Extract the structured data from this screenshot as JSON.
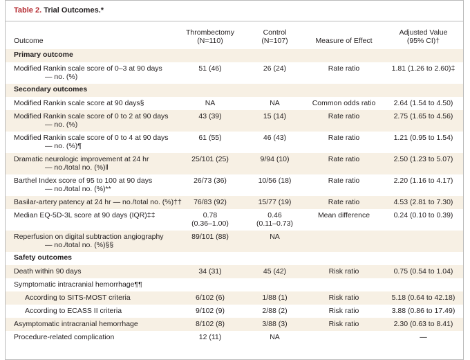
{
  "title": {
    "label": "Table 2.",
    "text": "Trial Outcomes.*"
  },
  "table": {
    "columns": [
      [
        "Outcome"
      ],
      [
        "Thrombectomy",
        "(N=110)"
      ],
      [
        "Control",
        "(N=107)"
      ],
      [
        "Measure of Effect"
      ],
      [
        "Adjusted Value",
        "(95% CI)†"
      ]
    ],
    "rows": [
      {
        "section": "Primary outcome"
      },
      {
        "cells": [
          [
            "Modified Rankin scale score of 0–3 at 90 days",
            "— no. (%)"
          ],
          "51 (46)",
          "26 (24)",
          "Rate ratio",
          "1.81 (1.26 to 2.60)‡"
        ]
      },
      {
        "section": "Secondary outcomes"
      },
      {
        "cells": [
          [
            "Modified Rankin scale score at 90 days§"
          ],
          "NA",
          "NA",
          "Common odds ratio",
          "2.64 (1.54 to 4.50)"
        ]
      },
      {
        "cells": [
          [
            "Modified Rankin scale score of 0 to 2 at 90 days",
            "— no. (%)"
          ],
          "43 (39)",
          "15 (14)",
          "Rate ratio",
          "2.75 (1.65 to 4.56)"
        ]
      },
      {
        "cells": [
          [
            "Modified Rankin scale score of 0 to 4 at 90 days",
            "— no. (%)¶"
          ],
          "61 (55)",
          "46 (43)",
          "Rate ratio",
          "1.21 (0.95 to 1.54)"
        ]
      },
      {
        "cells": [
          [
            "Dramatic neurologic improvement at 24 hr",
            "— no./total no. (%)‖"
          ],
          "25/101 (25)",
          "9/94 (10)",
          "Rate ratio",
          "2.50 (1.23 to 5.07)"
        ]
      },
      {
        "cells": [
          [
            "Barthel Index score of 95 to 100 at 90 days",
            "— no./total no. (%)**"
          ],
          "26/73 (36)",
          "10/56 (18)",
          "Rate ratio",
          "2.20 (1.16 to 4.17)"
        ]
      },
      {
        "cells": [
          [
            "Basilar-artery patency at 24 hr — no./total no. (%)††"
          ],
          "76/83 (92)",
          "15/77 (19)",
          "Rate ratio",
          "4.53 (2.81 to 7.30)"
        ]
      },
      {
        "cells": [
          [
            "Median EQ-5D-3L score at 90 days (IQR)‡‡"
          ],
          [
            "0.78",
            "(0.36–1.00)"
          ],
          [
            "0.46",
            "(0.11–0.73)"
          ],
          "Mean difference",
          "0.24 (0.10 to 0.39)"
        ]
      },
      {
        "cells": [
          [
            "Reperfusion on digital subtraction angiography",
            "— no./total no. (%)§§"
          ],
          "89/101 (88)",
          "NA",
          "",
          ""
        ]
      },
      {
        "section": "Safety outcomes"
      },
      {
        "cells": [
          [
            "Death within 90 days"
          ],
          "34 (31)",
          "45 (42)",
          "Risk ratio",
          "0.75 (0.54 to 1.04)"
        ]
      },
      {
        "cells": [
          [
            "Symptomatic intracranial hemorrhage¶¶"
          ],
          "",
          "",
          "",
          ""
        ]
      },
      {
        "indent": true,
        "cells": [
          [
            "According to SITS-MOST criteria"
          ],
          "6/102 (6)",
          "1/88 (1)",
          "Risk ratio",
          "5.18 (0.64 to 42.18)"
        ]
      },
      {
        "indent": true,
        "cells": [
          [
            "According to ECASS II criteria"
          ],
          "9/102 (9)",
          "2/88 (2)",
          "Risk ratio",
          "3.88 (0.86 to 17.49)"
        ]
      },
      {
        "cells": [
          [
            "Asymptomatic intracranial hemorrhage"
          ],
          "8/102 (8)",
          "3/88 (3)",
          "Risk ratio",
          "2.30 (0.63 to 8.41)"
        ]
      },
      {
        "cells": [
          [
            "Procedure-related complication"
          ],
          "12 (11)",
          "NA",
          "",
          "—"
        ]
      }
    ]
  }
}
